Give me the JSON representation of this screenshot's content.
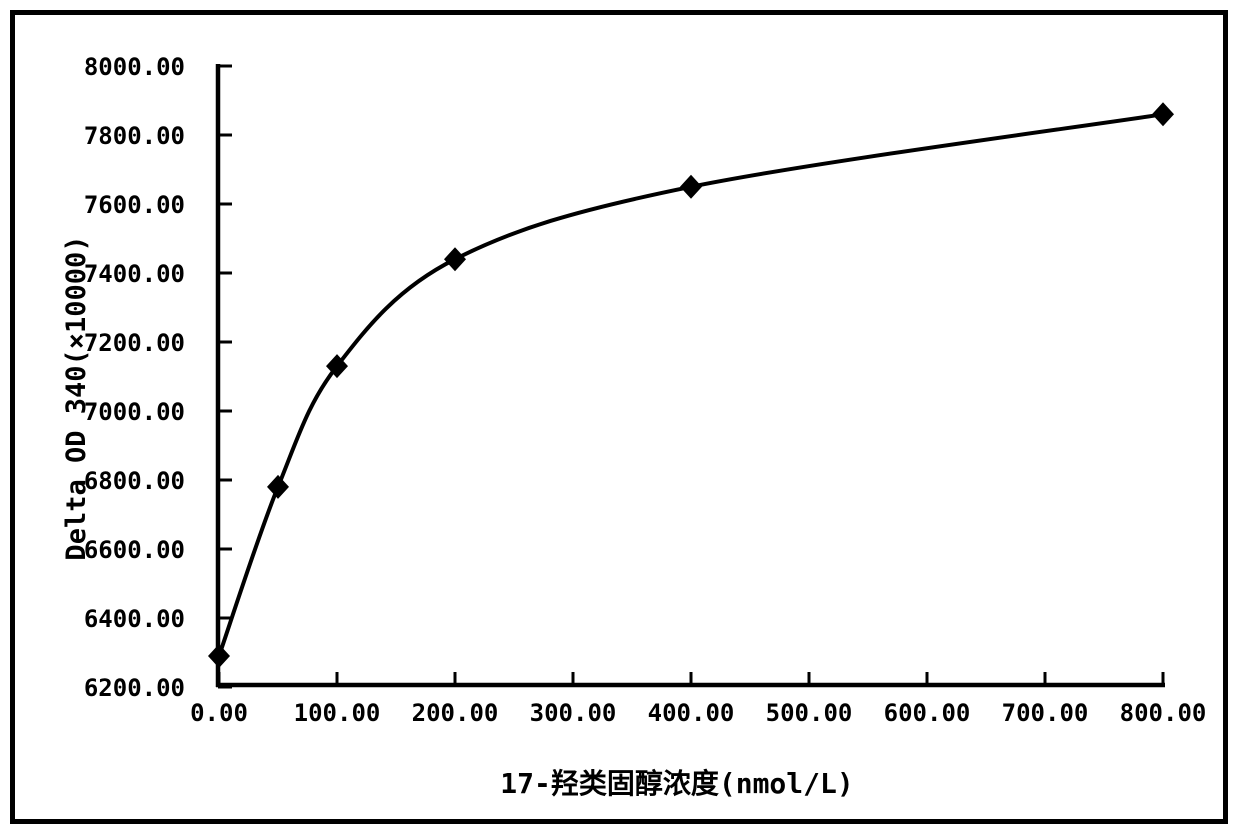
{
  "chart_data": {
    "type": "line",
    "title": "",
    "xlabel": "17-羟类固醇浓度(nmol/L)",
    "ylabel": "Delta OD 340(×10000)",
    "x": [
      0,
      50,
      100,
      200,
      400,
      800
    ],
    "y": [
      6290,
      6780,
      7130,
      7440,
      7650,
      7860
    ],
    "xlim": [
      0,
      800
    ],
    "ylim": [
      6200,
      8000
    ],
    "x_ticks": [
      0,
      100,
      200,
      300,
      400,
      500,
      600,
      700,
      800
    ],
    "x_tick_labels": [
      "0.00",
      "100.00",
      "200.00",
      "300.00",
      "400.00",
      "500.00",
      "600.00",
      "700.00",
      "800.00"
    ],
    "y_ticks": [
      6200,
      6400,
      6600,
      6800,
      7000,
      7200,
      7400,
      7600,
      7800,
      8000
    ],
    "y_tick_labels": [
      "6200.00",
      "6400.00",
      "6600.00",
      "6800.00",
      "7000.00",
      "7200.00",
      "7400.00",
      "7600.00",
      "7800.00",
      "8000.00"
    ],
    "grid": false,
    "legend_position": "none",
    "marker": "diamond",
    "line_color": "#000000",
    "text_color": "#000000",
    "background_color": "#ffffff"
  }
}
